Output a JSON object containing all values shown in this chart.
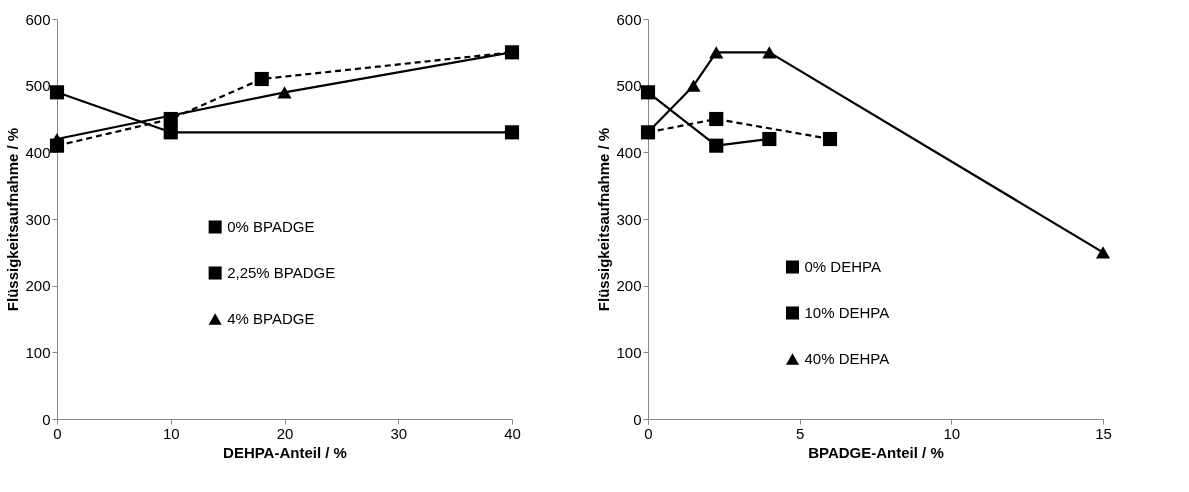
{
  "chart_data": [
    {
      "type": "line",
      "xlabel": "DEHPA-Anteil / %",
      "ylabel": "Flüssigkeitsaufnahme / %",
      "xlim": [
        0,
        40
      ],
      "xticks": [
        0,
        10,
        20,
        30,
        40
      ],
      "ylim": [
        0,
        600
      ],
      "yticks": [
        0,
        100,
        200,
        300,
        400,
        500,
        600
      ],
      "grid": false,
      "legend": "center",
      "series": [
        {
          "name": "0% BPADGE",
          "color": "#000000",
          "marker": "square",
          "line_style": "solid",
          "x": [
            0,
            10,
            40
          ],
          "values": [
            490,
            430,
            430
          ]
        },
        {
          "name": "2,25% BPADGE",
          "color": "#000000",
          "marker": "square",
          "line_style": "dashed",
          "x": [
            0,
            10,
            18,
            40
          ],
          "values": [
            410,
            450,
            510,
            550
          ]
        },
        {
          "name": "4% BPADGE",
          "color": "#000000",
          "marker": "triangle",
          "line_style": "solid",
          "x": [
            0,
            20,
            40
          ],
          "values": [
            420,
            490,
            550
          ]
        }
      ]
    },
    {
      "type": "line",
      "xlabel": "BPADGE-Anteil / %",
      "ylabel": "Flüssigkeitsaufnahme / %",
      "xlim": [
        0,
        15
      ],
      "xticks": [
        0,
        5,
        10,
        15
      ],
      "ylim": [
        0,
        600
      ],
      "yticks": [
        0,
        100,
        200,
        300,
        400,
        500,
        600
      ],
      "grid": false,
      "legend": "bottom center",
      "series": [
        {
          "name": "0% DEHPA",
          "color": "#000000",
          "marker": "square",
          "line_style": "solid",
          "x": [
            0,
            2.25,
            4
          ],
          "values": [
            490,
            410,
            420
          ]
        },
        {
          "name": "10% DEHPA",
          "color": "#000000",
          "marker": "square",
          "line_style": "dashed",
          "x": [
            0,
            2.25,
            6
          ],
          "values": [
            430,
            450,
            420
          ]
        },
        {
          "name": "40% DEHPA",
          "color": "#000000",
          "marker": "triangle",
          "line_style": "solid",
          "x": [
            0,
            1.5,
            2.25,
            4,
            15
          ],
          "values": [
            430,
            500,
            550,
            550,
            250
          ]
        }
      ]
    }
  ]
}
